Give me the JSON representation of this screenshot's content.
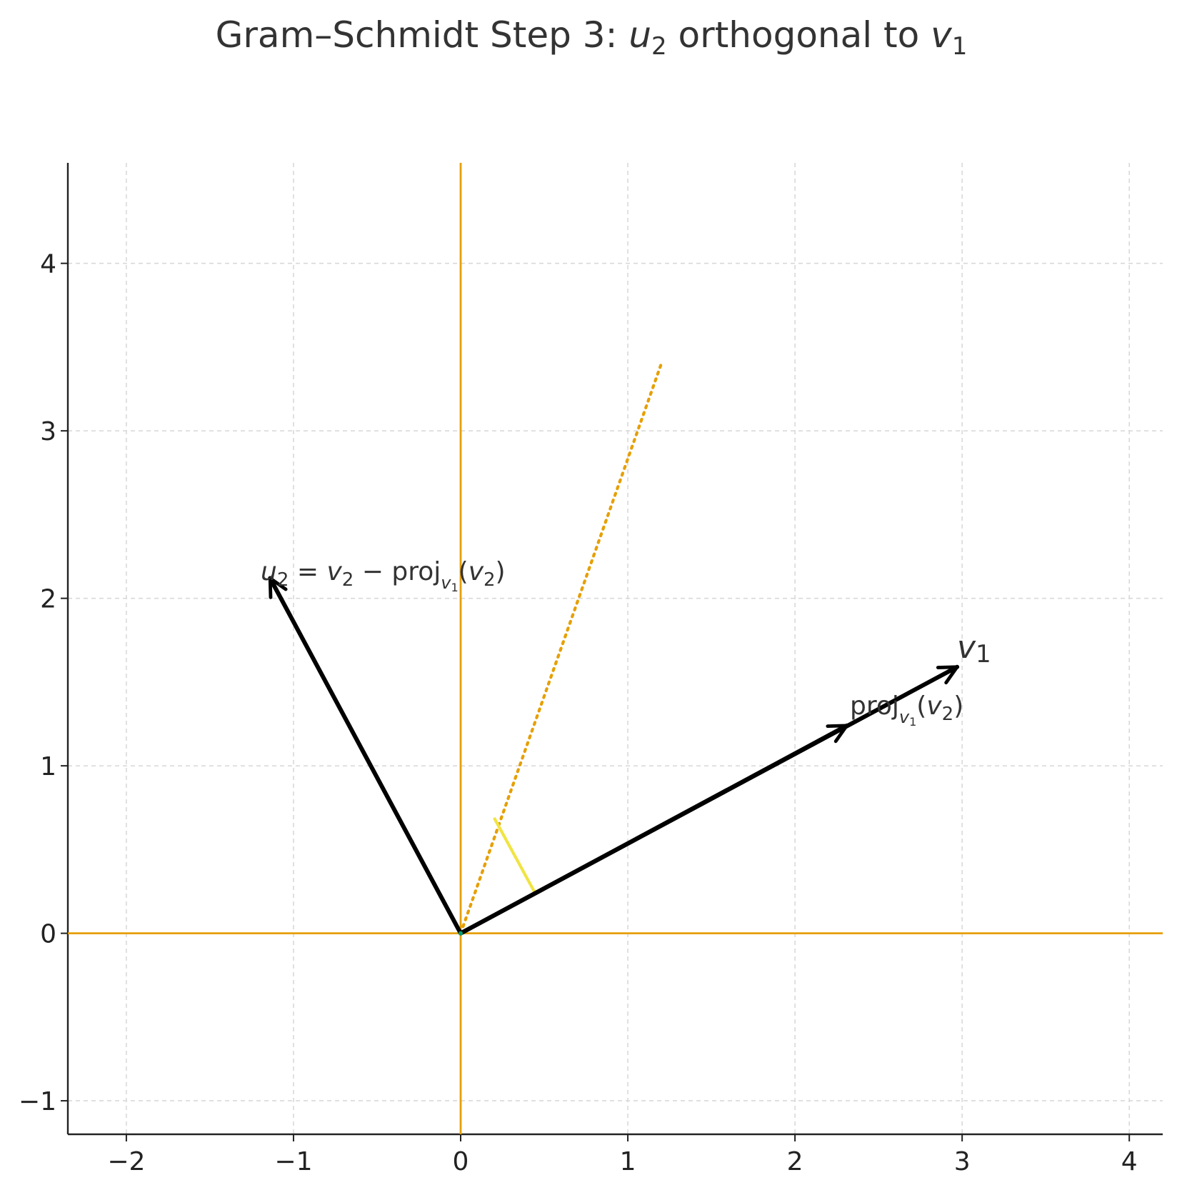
{
  "chart_data": {
    "type": "line",
    "title": {
      "prefix": "Gram–Schmidt Step 3: ",
      "var_a": "u",
      "sub_a": "2",
      "middle": " orthogonal to ",
      "var_b": "v",
      "sub_b": "1"
    },
    "xlabel": "",
    "ylabel": "",
    "xlim": [
      -2.35,
      4.2
    ],
    "ylim": [
      -1.2,
      4.6
    ],
    "xticks": [
      -2,
      -1,
      0,
      1,
      2,
      3,
      4
    ],
    "yticks": [
      -1,
      0,
      1,
      2,
      3,
      4
    ],
    "xtick_labels": [
      "−2",
      "−1",
      "0",
      "1",
      "2",
      "3",
      "4"
    ],
    "ytick_labels": [
      "−1",
      "0",
      "1",
      "2",
      "3",
      "4"
    ],
    "grid": true,
    "axis_lines_color": "#E69F00",
    "vectors": [
      {
        "id": "v1",
        "x": [
          0,
          2.97
        ],
        "y": [
          0,
          1.59
        ],
        "color": "#000000"
      },
      {
        "id": "proj",
        "x": [
          0,
          2.31
        ],
        "y": [
          0,
          1.24
        ],
        "color": "#000000"
      },
      {
        "id": "u2",
        "x": [
          0,
          -1.14
        ],
        "y": [
          0,
          2.12
        ],
        "color": "#000000"
      }
    ],
    "v2_line": {
      "x": [
        0,
        1.2
      ],
      "y": [
        0,
        3.4
      ],
      "style": "dotted",
      "color": "#E69F00"
    },
    "right_angle_marker": {
      "x": [
        0.2,
        0.44
      ],
      "y": [
        0.69,
        0.25
      ],
      "color": "#F0E442"
    },
    "labels": {
      "u2": {
        "u": "u",
        "u_sub": "2",
        "eq": " = ",
        "v": "v",
        "v_sub": "2",
        "minus": " − proj",
        "proj_sub": "v",
        "proj_sub_sub": "1",
        "open": "(",
        "v2": "v",
        "v2_sub": "2",
        "close": ")"
      },
      "v1": {
        "v": "v",
        "sub": "1"
      },
      "proj": {
        "proj": "proj",
        "sub": "v",
        "sub_sub": "1",
        "open": "(",
        "v": "v",
        "v_sub": "2",
        "close": ")"
      }
    }
  }
}
